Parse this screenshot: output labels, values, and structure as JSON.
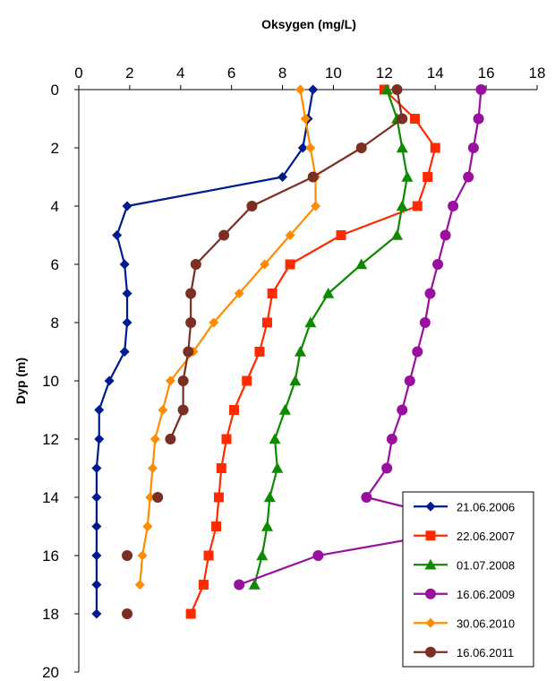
{
  "chart_data": {
    "type": "line",
    "title": "",
    "xlabel": "Oksygen (mg/L)",
    "ylabel": "Dyp (m)",
    "xlim": [
      0,
      18
    ],
    "ylim": [
      0,
      20
    ],
    "x_axis_position": "top",
    "y_axis_inverted": true,
    "x_ticks": [
      "0",
      "2",
      "4",
      "6",
      "8",
      "10",
      "12",
      "14",
      "16",
      "18"
    ],
    "y_ticks": [
      "0",
      "2",
      "4",
      "6",
      "8",
      "10",
      "12",
      "14",
      "16",
      "18",
      "20"
    ],
    "grid": false,
    "legend_position": "bottom-right",
    "series": [
      {
        "name": "21.06.2006",
        "color": "#001a8f",
        "marker": "diamond",
        "points": [
          [
            9.2,
            0
          ],
          [
            9.0,
            1
          ],
          [
            8.8,
            2
          ],
          [
            8.0,
            3
          ],
          [
            1.9,
            4
          ],
          [
            1.5,
            5
          ],
          [
            1.8,
            6
          ],
          [
            1.9,
            7
          ],
          [
            1.9,
            8
          ],
          [
            1.8,
            9
          ],
          [
            1.2,
            10
          ],
          [
            0.8,
            11
          ],
          [
            0.8,
            12
          ],
          [
            0.7,
            13
          ],
          [
            0.7,
            14
          ],
          [
            0.7,
            15
          ],
          [
            0.7,
            16
          ],
          [
            0.7,
            17
          ],
          [
            0.7,
            18
          ]
        ]
      },
      {
        "name": "22.06.2007",
        "color": "#ff2a00",
        "marker": "square",
        "points": [
          [
            12.0,
            0
          ],
          [
            13.2,
            1
          ],
          [
            14.0,
            2
          ],
          [
            13.7,
            3
          ],
          [
            13.3,
            4
          ],
          [
            10.3,
            5
          ],
          [
            8.3,
            6
          ],
          [
            7.6,
            7
          ],
          [
            7.4,
            8
          ],
          [
            7.1,
            9
          ],
          [
            6.6,
            10
          ],
          [
            6.1,
            11
          ],
          [
            5.8,
            12
          ],
          [
            5.6,
            13
          ],
          [
            5.5,
            14
          ],
          [
            5.4,
            15
          ],
          [
            5.1,
            16
          ],
          [
            4.9,
            17
          ],
          [
            4.4,
            18
          ]
        ]
      },
      {
        "name": "01.07.2008",
        "color": "#0d8a00",
        "marker": "triangle",
        "points": [
          [
            12.1,
            0
          ],
          [
            12.5,
            1
          ],
          [
            12.7,
            2
          ],
          [
            12.9,
            3
          ],
          [
            12.7,
            4
          ],
          [
            12.5,
            5
          ],
          [
            11.1,
            6
          ],
          [
            9.8,
            7
          ],
          [
            9.1,
            8
          ],
          [
            8.7,
            9
          ],
          [
            8.5,
            10
          ],
          [
            8.1,
            11
          ],
          [
            7.7,
            12
          ],
          [
            7.8,
            13
          ],
          [
            7.5,
            14
          ],
          [
            7.4,
            15
          ],
          [
            7.2,
            16
          ],
          [
            6.9,
            17
          ]
        ]
      },
      {
        "name": "16.06.2009",
        "color": "#99109f",
        "marker": "circle",
        "points": [
          [
            15.8,
            0
          ],
          [
            15.7,
            1
          ],
          [
            15.5,
            2
          ],
          [
            15.3,
            3
          ],
          [
            14.7,
            4
          ],
          [
            14.4,
            5
          ],
          [
            14.1,
            6
          ],
          [
            13.8,
            7
          ],
          [
            13.6,
            8
          ],
          [
            13.3,
            9
          ],
          [
            13.0,
            10
          ],
          [
            12.7,
            11
          ],
          [
            12.3,
            12
          ],
          [
            12.1,
            13
          ],
          [
            11.3,
            14
          ],
          [
            15.9,
            15
          ],
          [
            9.4,
            16
          ],
          [
            6.3,
            17
          ]
        ]
      },
      {
        "name": "30.06.2010",
        "color": "#ff8c00",
        "marker": "diamond",
        "points": [
          [
            8.7,
            0
          ],
          [
            8.9,
            1
          ],
          [
            9.1,
            2
          ],
          [
            9.3,
            3
          ],
          [
            9.3,
            4
          ],
          [
            8.3,
            5
          ],
          [
            7.3,
            6
          ],
          [
            6.3,
            7
          ],
          [
            5.3,
            8
          ],
          [
            4.5,
            9
          ],
          [
            3.6,
            10
          ],
          [
            3.3,
            11
          ],
          [
            3.0,
            12
          ],
          [
            2.9,
            13
          ],
          [
            2.8,
            14
          ],
          [
            2.7,
            15
          ],
          [
            2.5,
            16
          ],
          [
            2.4,
            17
          ]
        ]
      },
      {
        "name": "16.06.2011",
        "color": "#7b2e22",
        "marker": "circle",
        "points": [
          [
            12.5,
            0
          ],
          [
            12.7,
            1
          ],
          [
            11.1,
            2
          ],
          [
            9.2,
            3
          ],
          [
            6.8,
            4
          ],
          [
            5.7,
            5
          ],
          [
            4.6,
            6
          ],
          [
            4.4,
            7
          ],
          [
            4.4,
            8
          ],
          [
            4.3,
            9
          ],
          [
            4.1,
            10
          ],
          [
            4.1,
            11
          ],
          [
            3.6,
            12
          ],
          [
            null,
            13
          ],
          [
            3.1,
            14
          ],
          [
            null,
            15
          ],
          [
            1.9,
            16
          ],
          [
            null,
            17
          ],
          [
            1.9,
            18
          ]
        ]
      }
    ]
  }
}
